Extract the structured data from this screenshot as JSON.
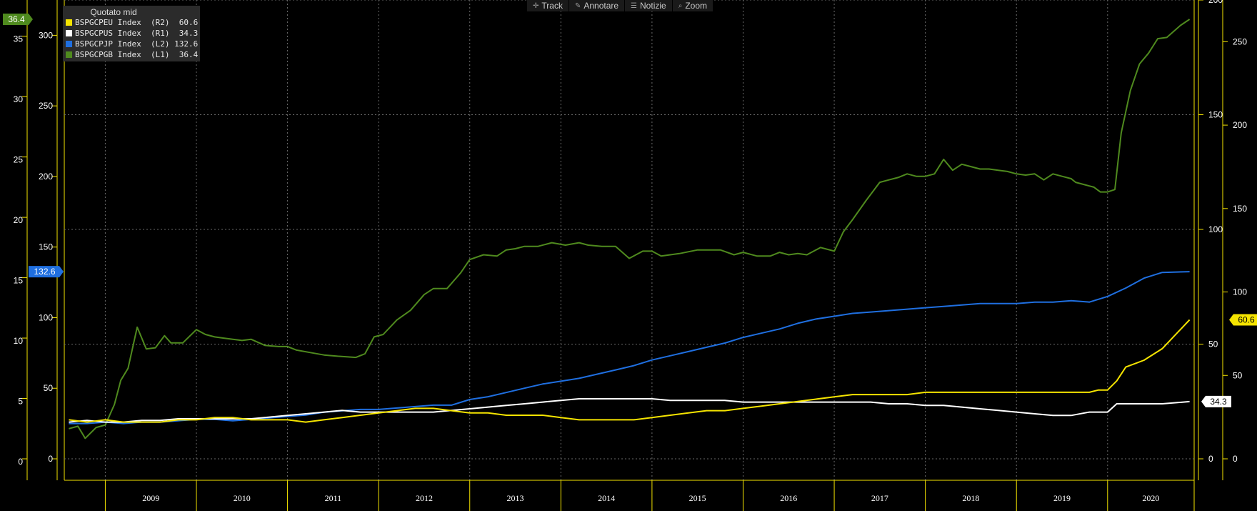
{
  "toolbar": {
    "items": [
      {
        "label": "Track",
        "icon": "crosshair-icon"
      },
      {
        "label": "Annotare",
        "icon": "pencil-icon"
      },
      {
        "label": "Notizie",
        "icon": "news-icon"
      },
      {
        "label": "Zoom",
        "icon": "magnifier-icon"
      }
    ]
  },
  "legend": {
    "title": "Quotato mid",
    "entries": [
      {
        "text": "BSPGCPEU Index  (R2)  60.6",
        "color": "#f5e400"
      },
      {
        "text": "BSPGCPUS Index  (R1)  34.3",
        "color": "#ffffff"
      },
      {
        "text": "BSPGCPJP Index  (L2) 132.6",
        "color": "#1f6fe0"
      },
      {
        "text": "BSPGCPGB Index  (L1)  36.4",
        "color": "#4f8a1e"
      }
    ]
  },
  "chart_data": {
    "type": "line",
    "x_range": [
      2008.55,
      2020.95
    ],
    "years": [
      "2009",
      "2010",
      "2011",
      "2012",
      "2013",
      "2014",
      "2015",
      "2016",
      "2017",
      "2018",
      "2019",
      "2020"
    ],
    "axes": {
      "L1": {
        "ticks": [
          0,
          5,
          10,
          15,
          20,
          25,
          30,
          35
        ],
        "range": [
          0,
          38
        ],
        "color": "#f5e400"
      },
      "L2": {
        "ticks": [
          0,
          50,
          100,
          150,
          200,
          250,
          300
        ],
        "range": [
          0,
          325
        ],
        "color": "#f5e400"
      },
      "R1": {
        "ticks": [
          0,
          50,
          100,
          150,
          200,
          250
        ],
        "range": [
          0,
          275
        ],
        "color": "#f5e400"
      },
      "R2": {
        "ticks": [
          0,
          50,
          100,
          150,
          200
        ],
        "range": [
          0,
          200
        ],
        "color": "#f5e400"
      }
    },
    "value_tags": [
      {
        "axis": "L1",
        "value": 36.4,
        "label": "36.4",
        "bg": "#4f8a1e",
        "fg": "#ffffff"
      },
      {
        "axis": "L2",
        "value": 132.6,
        "label": "132.6",
        "bg": "#1f6fe0",
        "fg": "#ffffff"
      },
      {
        "axis": "R2",
        "value": 60.6,
        "label": "60.6",
        "bg": "#f5e400",
        "fg": "#000000"
      },
      {
        "axis": "R1",
        "value": 34.3,
        "label": "34.3",
        "bg": "#ffffff",
        "fg": "#000000"
      }
    ],
    "series": [
      {
        "name": "BSPGCPGB Index",
        "axis": "L1",
        "color": "#4f8a1e",
        "x": [
          2008.6,
          2008.7,
          2008.78,
          2008.9,
          2009.0,
          2009.1,
          2009.17,
          2009.25,
          2009.35,
          2009.45,
          2009.55,
          2009.65,
          2009.72,
          2009.85,
          2010.0,
          2010.1,
          2010.2,
          2010.3,
          2010.5,
          2010.6,
          2010.75,
          2010.9,
          2011.0,
          2011.1,
          2011.25,
          2011.4,
          2011.55,
          2011.75,
          2011.85,
          2011.95,
          2012.05,
          2012.2,
          2012.35,
          2012.5,
          2012.6,
          2012.75,
          2012.9,
          2013.0,
          2013.15,
          2013.3,
          2013.4,
          2013.5,
          2013.6,
          2013.75,
          2013.9,
          2014.05,
          2014.2,
          2014.3,
          2014.45,
          2014.6,
          2014.75,
          2014.9,
          2015.0,
          2015.1,
          2015.3,
          2015.5,
          2015.6,
          2015.75,
          2015.9,
          2016.0,
          2016.15,
          2016.3,
          2016.4,
          2016.5,
          2016.6,
          2016.7,
          2016.85,
          2017.0,
          2017.1,
          2017.2,
          2017.35,
          2017.5,
          2017.6,
          2017.7,
          2017.8,
          2017.9,
          2018.0,
          2018.1,
          2018.2,
          2018.3,
          2018.4,
          2018.5,
          2018.6,
          2018.7,
          2018.8,
          2018.9,
          2019.0,
          2019.1,
          2019.2,
          2019.3,
          2019.4,
          2019.5,
          2019.6,
          2019.65,
          2019.75,
          2019.85,
          2019.92,
          2020.0,
          2020.08,
          2020.15,
          2020.25,
          2020.35,
          2020.45,
          2020.55,
          2020.65,
          2020.8,
          2020.9
        ],
        "y": [
          2.5,
          2.7,
          1.7,
          2.6,
          2.8,
          4.5,
          6.5,
          7.5,
          10.9,
          9.1,
          9.2,
          10.2,
          9.6,
          9.6,
          10.7,
          10.3,
          10.1,
          10.0,
          9.8,
          9.9,
          9.4,
          9.3,
          9.3,
          9.0,
          8.8,
          8.6,
          8.5,
          8.4,
          8.7,
          10.1,
          10.3,
          11.5,
          12.3,
          13.6,
          14.1,
          14.1,
          15.4,
          16.5,
          16.9,
          16.8,
          17.3,
          17.4,
          17.6,
          17.6,
          17.9,
          17.7,
          17.9,
          17.7,
          17.6,
          17.6,
          16.6,
          17.2,
          17.2,
          16.8,
          17.0,
          17.3,
          17.3,
          17.3,
          16.9,
          17.1,
          16.8,
          16.8,
          17.1,
          16.9,
          17.0,
          16.9,
          17.5,
          17.2,
          18.8,
          19.8,
          21.4,
          22.9,
          23.1,
          23.3,
          23.6,
          23.4,
          23.4,
          23.6,
          24.8,
          23.9,
          24.4,
          24.2,
          24.0,
          24.0,
          23.9,
          23.8,
          23.6,
          23.5,
          23.6,
          23.1,
          23.6,
          23.4,
          23.2,
          22.9,
          22.7,
          22.5,
          22.1,
          22.1,
          22.3,
          27.0,
          30.5,
          32.7,
          33.6,
          34.8,
          34.9,
          35.9,
          36.4
        ]
      },
      {
        "name": "BSPGCPJP Index",
        "axis": "L2",
        "color": "#1f6fe0",
        "x": [
          2008.6,
          2008.8,
          2009.0,
          2009.2,
          2009.4,
          2009.6,
          2009.8,
          2010.0,
          2010.2,
          2010.4,
          2010.6,
          2010.8,
          2011.0,
          2011.2,
          2011.4,
          2011.6,
          2011.8,
          2012.0,
          2012.2,
          2012.4,
          2012.6,
          2012.8,
          2013.0,
          2013.2,
          2013.4,
          2013.6,
          2013.8,
          2014.0,
          2014.2,
          2014.4,
          2014.6,
          2014.8,
          2015.0,
          2015.2,
          2015.4,
          2015.6,
          2015.8,
          2016.0,
          2016.2,
          2016.4,
          2016.6,
          2016.8,
          2017.0,
          2017.2,
          2017.4,
          2017.6,
          2017.8,
          2018.0,
          2018.2,
          2018.4,
          2018.6,
          2018.8,
          2019.0,
          2019.2,
          2019.4,
          2019.6,
          2019.8,
          2020.0,
          2020.2,
          2020.4,
          2020.6,
          2020.9
        ],
        "y": [
          25,
          25,
          26,
          25,
          26,
          26,
          27,
          28,
          28,
          27,
          28,
          29,
          30,
          31,
          33,
          34,
          35,
          35,
          36,
          37,
          38,
          38,
          42,
          44,
          47,
          50,
          53,
          55,
          57,
          60,
          63,
          66,
          70,
          73,
          76,
          79,
          82,
          86,
          89,
          92,
          96,
          99,
          101,
          103,
          104,
          105,
          106,
          107,
          108,
          109,
          110,
          110,
          110,
          111,
          111,
          112,
          111,
          115,
          121,
          128,
          132,
          132.6
        ]
      },
      {
        "name": "BSPGCPUS Index",
        "axis": "R1",
        "color": "#ffffff",
        "x": [
          2008.6,
          2008.8,
          2009.0,
          2009.2,
          2009.4,
          2009.6,
          2009.8,
          2010.0,
          2010.2,
          2010.4,
          2010.6,
          2010.8,
          2011.0,
          2011.2,
          2011.4,
          2011.6,
          2011.8,
          2012.0,
          2012.2,
          2012.4,
          2012.6,
          2012.8,
          2013.0,
          2013.2,
          2013.4,
          2013.6,
          2013.8,
          2014.0,
          2014.2,
          2014.4,
          2014.6,
          2014.8,
          2015.0,
          2015.2,
          2015.4,
          2015.6,
          2015.8,
          2016.0,
          2016.2,
          2016.4,
          2016.6,
          2016.8,
          2017.0,
          2017.2,
          2017.4,
          2017.6,
          2017.8,
          2018.0,
          2018.2,
          2018.4,
          2018.6,
          2018.8,
          2019.0,
          2019.2,
          2019.4,
          2019.6,
          2019.8,
          2019.9,
          2020.0,
          2020.1,
          2020.2,
          2020.4,
          2020.6,
          2020.9
        ],
        "y": [
          22,
          23,
          22,
          22,
          23,
          23,
          24,
          24,
          24,
          24,
          24,
          25,
          26,
          27,
          28,
          29,
          28,
          28,
          28,
          28,
          28,
          29,
          30,
          31,
          32,
          33,
          34,
          35,
          36,
          36,
          36,
          36,
          36,
          35,
          35,
          35,
          35,
          34,
          34,
          34,
          34,
          34,
          34,
          34,
          34,
          33,
          33,
          32,
          32,
          31,
          30,
          29,
          28,
          27,
          26,
          26,
          28,
          28,
          28,
          33,
          33,
          33,
          33,
          34.3
        ]
      },
      {
        "name": "BSPGCPEU Index",
        "axis": "R2",
        "color": "#f5e400",
        "x": [
          2008.6,
          2008.8,
          2009.0,
          2009.2,
          2009.4,
          2009.6,
          2009.8,
          2010.0,
          2010.2,
          2010.4,
          2010.6,
          2010.8,
          2011.0,
          2011.2,
          2011.4,
          2011.6,
          2011.8,
          2012.0,
          2012.2,
          2012.4,
          2012.6,
          2012.8,
          2013.0,
          2013.2,
          2013.4,
          2013.6,
          2013.8,
          2014.0,
          2014.2,
          2014.4,
          2014.6,
          2014.8,
          2015.0,
          2015.2,
          2015.4,
          2015.6,
          2015.8,
          2016.0,
          2016.2,
          2016.4,
          2016.6,
          2016.8,
          2017.0,
          2017.2,
          2017.4,
          2017.6,
          2017.8,
          2018.0,
          2018.2,
          2018.4,
          2018.6,
          2018.8,
          2019.0,
          2019.2,
          2019.4,
          2019.6,
          2019.8,
          2019.9,
          2020.0,
          2020.1,
          2020.2,
          2020.4,
          2020.6,
          2020.9
        ],
        "y": [
          17,
          16,
          17,
          16,
          16,
          16,
          17,
          17,
          18,
          18,
          17,
          17,
          17,
          16,
          17,
          18,
          19,
          20,
          21,
          22,
          22,
          21,
          20,
          20,
          19,
          19,
          19,
          18,
          17,
          17,
          17,
          17,
          18,
          19,
          20,
          21,
          21,
          22,
          23,
          24,
          25,
          26,
          27,
          28,
          28,
          28,
          28,
          29,
          29,
          29,
          29,
          29,
          29,
          29,
          29,
          29,
          29,
          30,
          30,
          34,
          40,
          43,
          48,
          60.6
        ]
      }
    ]
  }
}
